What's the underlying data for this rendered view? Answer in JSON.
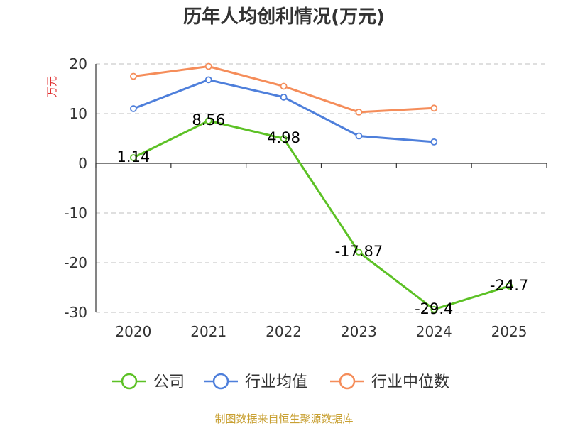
{
  "chart_data": {
    "type": "line",
    "title": "历年人均创利情况(万元)",
    "ylabel": "万元",
    "xlabel": "",
    "categories": [
      "2020",
      "2021",
      "2022",
      "2023",
      "2024",
      "2025"
    ],
    "ylim": [
      -30,
      20
    ],
    "yticks": [
      20,
      10,
      0,
      -10,
      -20,
      -30
    ],
    "grid": true,
    "legend_position": "bottom",
    "series": [
      {
        "name": "公司",
        "color": "#5cc125",
        "values": [
          1.14,
          8.56,
          4.98,
          -17.87,
          -29.4,
          -24.7
        ],
        "data_labels": [
          "1.14",
          "8.56",
          "4.98",
          "-17.87",
          "-29.4",
          "-24.7"
        ]
      },
      {
        "name": "行业均值",
        "color": "#4e7fdb",
        "values": [
          11.0,
          16.8,
          13.3,
          5.5,
          4.3,
          null
        ]
      },
      {
        "name": "行业中位数",
        "color": "#f58d5a",
        "values": [
          17.5,
          19.5,
          15.5,
          10.3,
          11.1,
          null
        ]
      }
    ]
  },
  "source": "制图数据来自恒生聚源数据库"
}
